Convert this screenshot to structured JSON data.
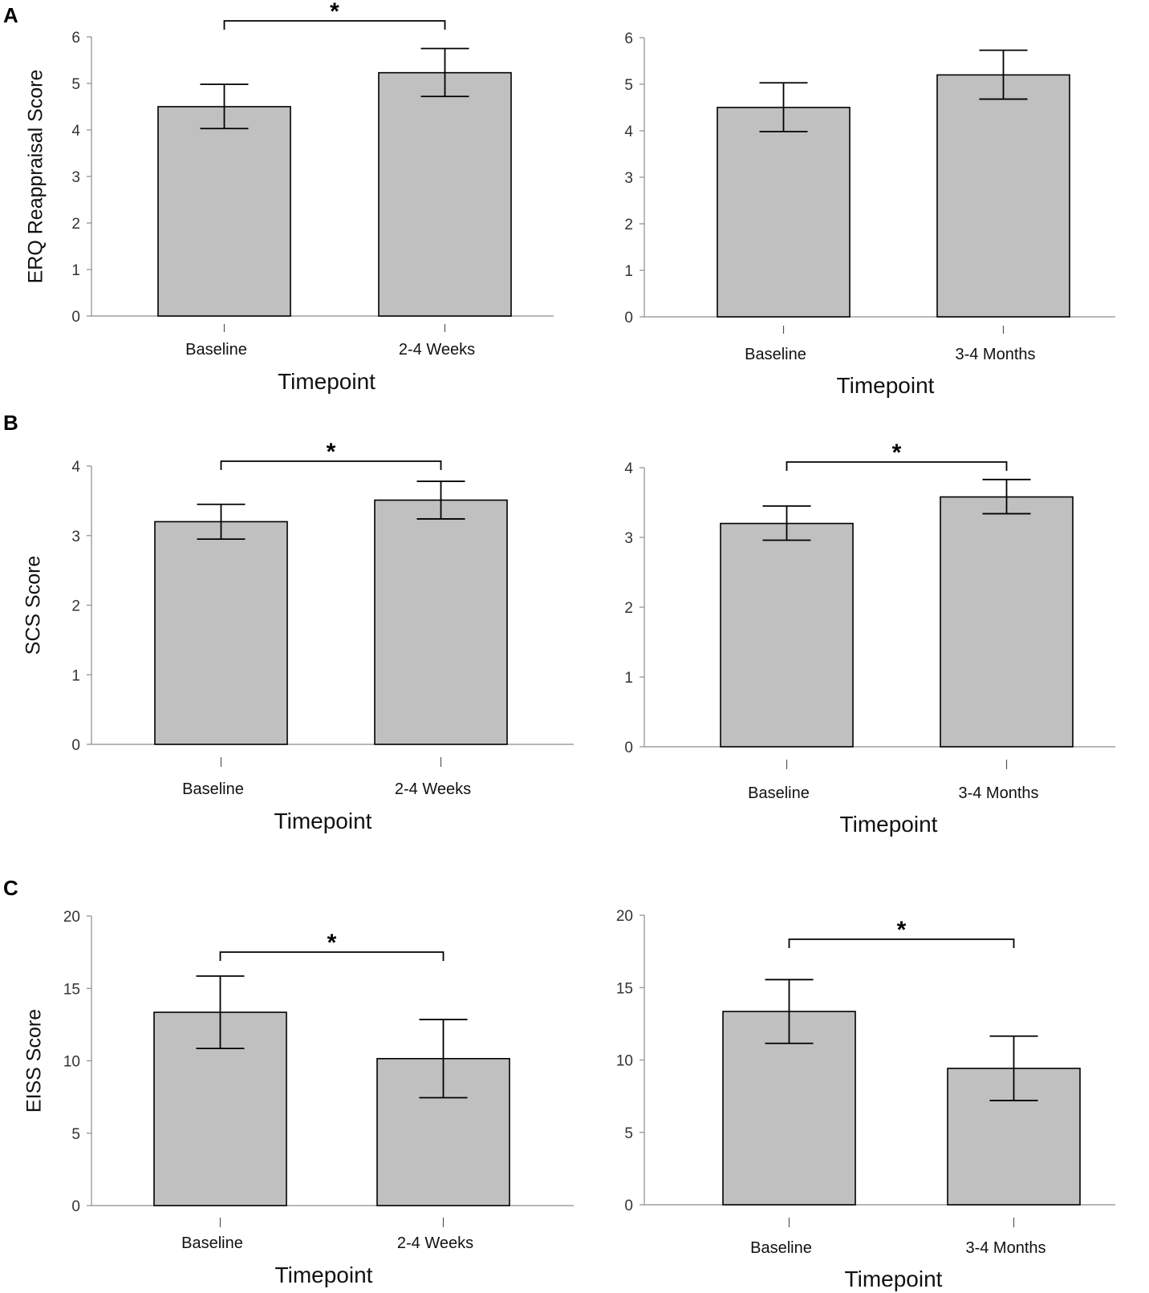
{
  "panel_letters": [
    "A",
    "B",
    "C"
  ],
  "chart_data": [
    {
      "type": "bar",
      "panel": "A",
      "title": "",
      "xlabel": "Timepoint",
      "ylabel": "ERQ Reappraisal Score",
      "categories": [
        "Baseline",
        "2-4 Weeks"
      ],
      "values": [
        4.5,
        5.23
      ],
      "error_low": [
        4.03,
        4.72
      ],
      "error_high": [
        4.98,
        5.75
      ],
      "ylim": [
        0,
        6
      ],
      "yticks": [
        0,
        1,
        2,
        3,
        4,
        5,
        6
      ],
      "significance": "*"
    },
    {
      "type": "bar",
      "panel": "A",
      "title": "",
      "xlabel": "Timepoint",
      "ylabel": "",
      "categories": [
        "Baseline",
        "3-4 Months"
      ],
      "values": [
        4.5,
        5.2
      ],
      "error_low": [
        3.98,
        4.68
      ],
      "error_high": [
        5.03,
        5.73
      ],
      "ylim": [
        0,
        6
      ],
      "yticks": [
        0,
        1,
        2,
        3,
        4,
        5,
        6
      ],
      "significance": null
    },
    {
      "type": "bar",
      "panel": "B",
      "title": "",
      "xlabel": "Timepoint",
      "ylabel": "SCS Score",
      "categories": [
        "Baseline",
        "2-4 Weeks"
      ],
      "values": [
        3.2,
        3.51
      ],
      "error_low": [
        2.95,
        3.24
      ],
      "error_high": [
        3.45,
        3.78
      ],
      "ylim": [
        0,
        4
      ],
      "yticks": [
        0,
        1,
        2,
        3,
        4
      ],
      "significance": "*"
    },
    {
      "type": "bar",
      "panel": "B",
      "title": "",
      "xlabel": "Timepoint",
      "ylabel": "",
      "categories": [
        "Baseline",
        "3-4 Months"
      ],
      "values": [
        3.2,
        3.58
      ],
      "error_low": [
        2.96,
        3.34
      ],
      "error_high": [
        3.45,
        3.83
      ],
      "ylim": [
        0,
        4
      ],
      "yticks": [
        0,
        1,
        2,
        3,
        4
      ],
      "significance": "*"
    },
    {
      "type": "bar",
      "panel": "C",
      "title": "",
      "xlabel": "Timepoint",
      "ylabel": "EISS Score",
      "categories": [
        "Baseline",
        "2-4 Weeks"
      ],
      "values": [
        13.35,
        10.15
      ],
      "error_low": [
        10.85,
        7.45
      ],
      "error_high": [
        15.85,
        12.85
      ],
      "ylim": [
        0,
        20
      ],
      "yticks": [
        0,
        5,
        10,
        15,
        20
      ],
      "significance": "*"
    },
    {
      "type": "bar",
      "panel": "C",
      "title": "",
      "xlabel": "Timepoint",
      "ylabel": "",
      "categories": [
        "Baseline",
        "3-4 Months"
      ],
      "values": [
        13.35,
        9.42
      ],
      "error_low": [
        11.15,
        7.2
      ],
      "error_high": [
        15.55,
        11.65
      ],
      "ylim": [
        0,
        20
      ],
      "yticks": [
        0,
        5,
        10,
        15,
        20
      ],
      "significance": "*"
    }
  ]
}
